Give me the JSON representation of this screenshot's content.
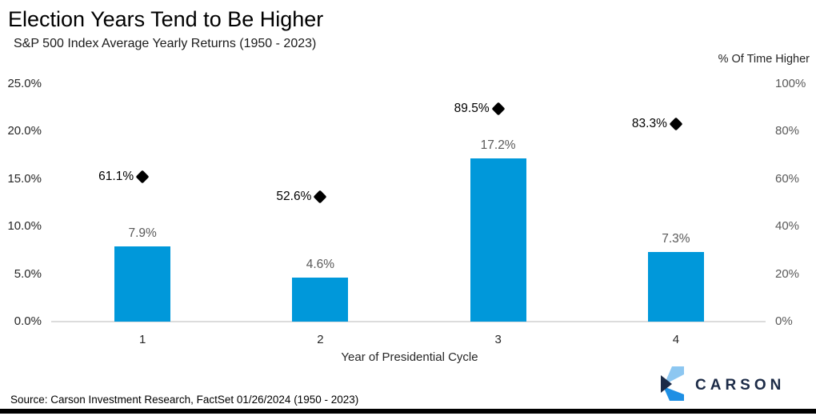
{
  "header": {
    "title": "Election Years Tend to Be Higher",
    "subtitle": "S&P 500 Index Average Yearly Returns (1950 - 2023)"
  },
  "chart_data": {
    "type": "bar",
    "title": "Election Years Tend to Be Higher",
    "subtitle": "S&P 500 Index Average Yearly Returns (1950 - 2023)",
    "categories": [
      "1",
      "2",
      "3",
      "4"
    ],
    "xlabel": "Year of Presidential Cycle",
    "series": [
      {
        "name": "S&P 500 Index Average Yearly Returns",
        "type": "bar",
        "axis": "left",
        "values": [
          7.9,
          4.6,
          17.2,
          7.3
        ],
        "labels": [
          "7.9%",
          "4.6%",
          "17.2%",
          "7.3%"
        ],
        "color": "#0098da"
      },
      {
        "name": "% Of Time Higher",
        "type": "scatter-diamond",
        "axis": "right",
        "values": [
          61.1,
          52.6,
          89.5,
          83.3
        ],
        "labels": [
          "61.1%",
          "52.6%",
          "89.5%",
          "83.3%"
        ],
        "color": "#000000"
      }
    ],
    "left_axis": {
      "min": 0,
      "max": 25,
      "ticks": [
        "25.0%",
        "20.0%",
        "15.0%",
        "10.0%",
        "5.0%",
        "0.0%"
      ]
    },
    "right_axis": {
      "title": "% Of Time Higher",
      "min": 0,
      "max": 100,
      "ticks": [
        "100%",
        "80%",
        "60%",
        "40%",
        "20%",
        "0%"
      ]
    },
    "grid": false,
    "legend": "none"
  },
  "footer": {
    "source": "Source: Carson Investment Research, FactSet 01/26/2024 (1950 - 2023)",
    "logo_text": "CARSON"
  },
  "colors": {
    "bar_blue": "#0098da",
    "diamond_black": "#000000",
    "axis_line_gray": "#dcdcdc",
    "logo_navy": "#1c2b47",
    "logo_light_blue": "#8dc7f1",
    "logo_mid_blue": "#1e8fe4"
  }
}
